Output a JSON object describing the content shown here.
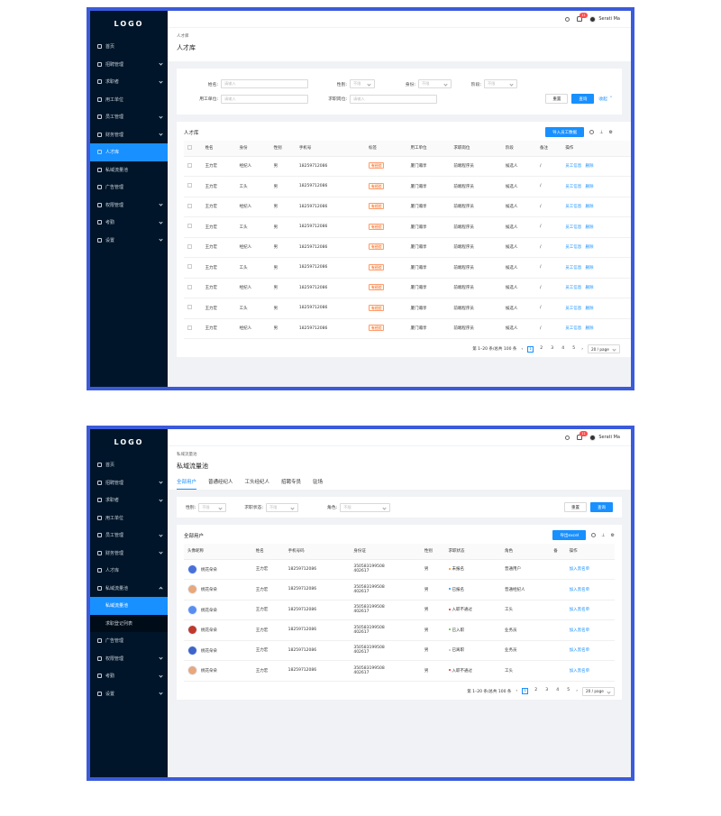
{
  "logo": "LOGO",
  "colors": {
    "accent": "#1890ff",
    "sidebar": "#001529",
    "frame": "#3b5bdb"
  },
  "screen1": {
    "menu": [
      {
        "label": "首页",
        "arrow": false,
        "active": false
      },
      {
        "label": "招聘管理",
        "arrow": true,
        "active": false
      },
      {
        "label": "求职者",
        "arrow": true,
        "active": false
      },
      {
        "label": "用工单位",
        "arrow": false,
        "active": false
      },
      {
        "label": "员工管理",
        "arrow": true,
        "active": false
      },
      {
        "label": "财务管理",
        "arrow": true,
        "active": false
      },
      {
        "label": "人才库",
        "arrow": false,
        "active": true
      },
      {
        "label": "私域流量池",
        "arrow": false,
        "active": false
      },
      {
        "label": "广告管理",
        "arrow": false,
        "active": false
      },
      {
        "label": "权限管理",
        "arrow": true,
        "active": false
      },
      {
        "label": "考勤",
        "arrow": true,
        "active": false
      },
      {
        "label": "设置",
        "arrow": true,
        "active": false
      }
    ],
    "topbar": {
      "badge": "11",
      "user": "Serati Ma"
    },
    "breadcrumb": "人才库",
    "title": "人才库",
    "filters": {
      "name_label": "姓名:",
      "name_ph": "请输入",
      "gender_label": "性别:",
      "gender_ph": "不限",
      "identity_label": "身份:",
      "identity_ph": "不限",
      "stage_label": "阶段:",
      "stage_ph": "不限",
      "employer_label": "用工单位:",
      "employer_ph": "请输入",
      "position_label": "求职岗位:",
      "position_ph": "请输入",
      "reset": "重置",
      "query": "查询",
      "collapse": "收起"
    },
    "table_title": "人才库",
    "import_btn": "导入员工数据",
    "columns": [
      "姓名",
      "身份",
      "性别",
      "手机号",
      "标签",
      "用工单位",
      "求职岗位",
      "阶段",
      "备注",
      "操作"
    ],
    "rows": [
      {
        "name": "王力宏",
        "identity": "经纪人",
        "gender": "男",
        "phone": "18259712086",
        "tag": "有经验",
        "employer": "厦门瀚享",
        "position": "前端程序员",
        "stage": "候选人",
        "note": "/"
      },
      {
        "name": "王力宏",
        "identity": "工头",
        "gender": "男",
        "phone": "18259712086",
        "tag": "有经验",
        "employer": "厦门瀚享",
        "position": "前端程序员",
        "stage": "候选人",
        "note": "/"
      },
      {
        "name": "王力宏",
        "identity": "经纪人",
        "gender": "男",
        "phone": "18259712086",
        "tag": "有经验",
        "employer": "厦门瀚享",
        "position": "前端程序员",
        "stage": "候选人",
        "note": "/"
      },
      {
        "name": "王力宏",
        "identity": "工头",
        "gender": "男",
        "phone": "18259712086",
        "tag": "有经验",
        "employer": "厦门瀚享",
        "position": "前端程序员",
        "stage": "候选人",
        "note": "/"
      },
      {
        "name": "王力宏",
        "identity": "经纪人",
        "gender": "男",
        "phone": "18259712086",
        "tag": "有经验",
        "employer": "厦门瀚享",
        "position": "前端程序员",
        "stage": "候选人",
        "note": "/"
      },
      {
        "name": "王力宏",
        "identity": "工头",
        "gender": "男",
        "phone": "18259712086",
        "tag": "有经验",
        "employer": "厦门瀚享",
        "position": "前端程序员",
        "stage": "候选人",
        "note": "/"
      },
      {
        "name": "王力宏",
        "identity": "经纪人",
        "gender": "男",
        "phone": "18259712086",
        "tag": "有经验",
        "employer": "厦门瀚享",
        "position": "前端程序员",
        "stage": "候选人",
        "note": "/"
      },
      {
        "name": "王力宏",
        "identity": "工头",
        "gender": "男",
        "phone": "18259712086",
        "tag": "有经验",
        "employer": "厦门瀚享",
        "position": "前端程序员",
        "stage": "候选人",
        "note": "/"
      },
      {
        "name": "王力宏",
        "identity": "经纪人",
        "gender": "男",
        "phone": "18259712086",
        "tag": "有经验",
        "employer": "厦门瀚享",
        "position": "前端程序员",
        "stage": "候选人",
        "note": "/"
      }
    ],
    "row_action1": "员工信息",
    "row_action2": "删除",
    "pager": {
      "summary": "第 1–20 条/总共 100 条",
      "pages": [
        "1",
        "2",
        "3",
        "4",
        "5"
      ],
      "size": "20 / page"
    }
  },
  "screen2": {
    "menu": [
      {
        "label": "首页",
        "arrow": false,
        "active": false
      },
      {
        "label": "招聘管理",
        "arrow": true,
        "active": false
      },
      {
        "label": "求职者",
        "arrow": true,
        "active": false
      },
      {
        "label": "用工单位",
        "arrow": false,
        "active": false
      },
      {
        "label": "员工管理",
        "arrow": true,
        "active": false
      },
      {
        "label": "财务管理",
        "arrow": true,
        "active": false
      },
      {
        "label": "人才库",
        "arrow": false,
        "active": false
      },
      {
        "label": "私域流量池",
        "arrow": true,
        "active": false,
        "open": true
      },
      {
        "label": "私域流量池",
        "sub": true,
        "active": true
      },
      {
        "label": "求职登记列表",
        "sub": true,
        "active": false
      },
      {
        "label": "广告管理",
        "arrow": false,
        "active": false
      },
      {
        "label": "权限管理",
        "arrow": true,
        "active": false
      },
      {
        "label": "考勤",
        "arrow": true,
        "active": false
      },
      {
        "label": "设置",
        "arrow": true,
        "active": false
      }
    ],
    "topbar": {
      "badge": "11",
      "user": "Serati Ma"
    },
    "breadcrumb": "私域流量池",
    "title": "私域流量池",
    "tabs": [
      "全部用户",
      "普通经纪人",
      "工头经纪人",
      "招聘专员",
      "驻场"
    ],
    "filters": {
      "gender_label": "性别:",
      "gender_ph": "不限",
      "status_label": "求职状态:",
      "status_ph": "不限",
      "role_label": "角色:",
      "role_ph": "不限",
      "reset": "重置",
      "query": "查询"
    },
    "table_title": "全部用户",
    "export_btn": "导出excel",
    "columns": [
      "头像昵称",
      "姓名",
      "手机号码",
      "身份证",
      "性别",
      "求职状态",
      "角色",
      "备",
      "操作"
    ],
    "rows": [
      {
        "nick": "桃花朵朵",
        "name": "王力宏",
        "phone": "18259712086",
        "id1": "350583199508",
        "id2": "402617",
        "gender": "男",
        "status": "未报名",
        "status_color": "#fa8c16",
        "role": "普通用户",
        "face": "#4a6fd8"
      },
      {
        "nick": "桃花朵朵",
        "name": "王力宏",
        "phone": "18259712086",
        "id1": "350583199508",
        "id2": "402617",
        "gender": "男",
        "status": "已报名",
        "status_color": "#1890ff",
        "role": "普通经纪人",
        "face": "#e8a87c"
      },
      {
        "nick": "桃花朵朵",
        "name": "王力宏",
        "phone": "18259712086",
        "id1": "350583199508",
        "id2": "402617",
        "gender": "男",
        "status": "入职不通过",
        "status_color": "#f5222d",
        "role": "工头",
        "face": "#5b8def"
      },
      {
        "nick": "桃花朵朵",
        "name": "王力宏",
        "phone": "18259712086",
        "id1": "350583199508",
        "id2": "402617",
        "gender": "男",
        "status": "已入职",
        "status_color": "#52c41a",
        "role": "业务员",
        "face": "#c0392b"
      },
      {
        "nick": "桃花朵朵",
        "name": "王力宏",
        "phone": "18259712086",
        "id1": "350583199508",
        "id2": "402617",
        "gender": "男",
        "status": "已离职",
        "status_color": "#bfbfbf",
        "role": "业务员",
        "face": "#3e64c8"
      },
      {
        "nick": "桃花朵朵",
        "name": "王力宏",
        "phone": "18259712086",
        "id1": "350583199508",
        "id2": "402617",
        "gender": "男",
        "status": "入职不通过",
        "status_color": "#f5222d",
        "role": "工头",
        "face": "#e8a87c"
      }
    ],
    "row_action": "加入黑名单",
    "pager": {
      "summary": "第 1–20 条/总共 100 条",
      "pages": [
        "1",
        "2",
        "3",
        "4",
        "5"
      ],
      "size": "20 / page"
    }
  }
}
